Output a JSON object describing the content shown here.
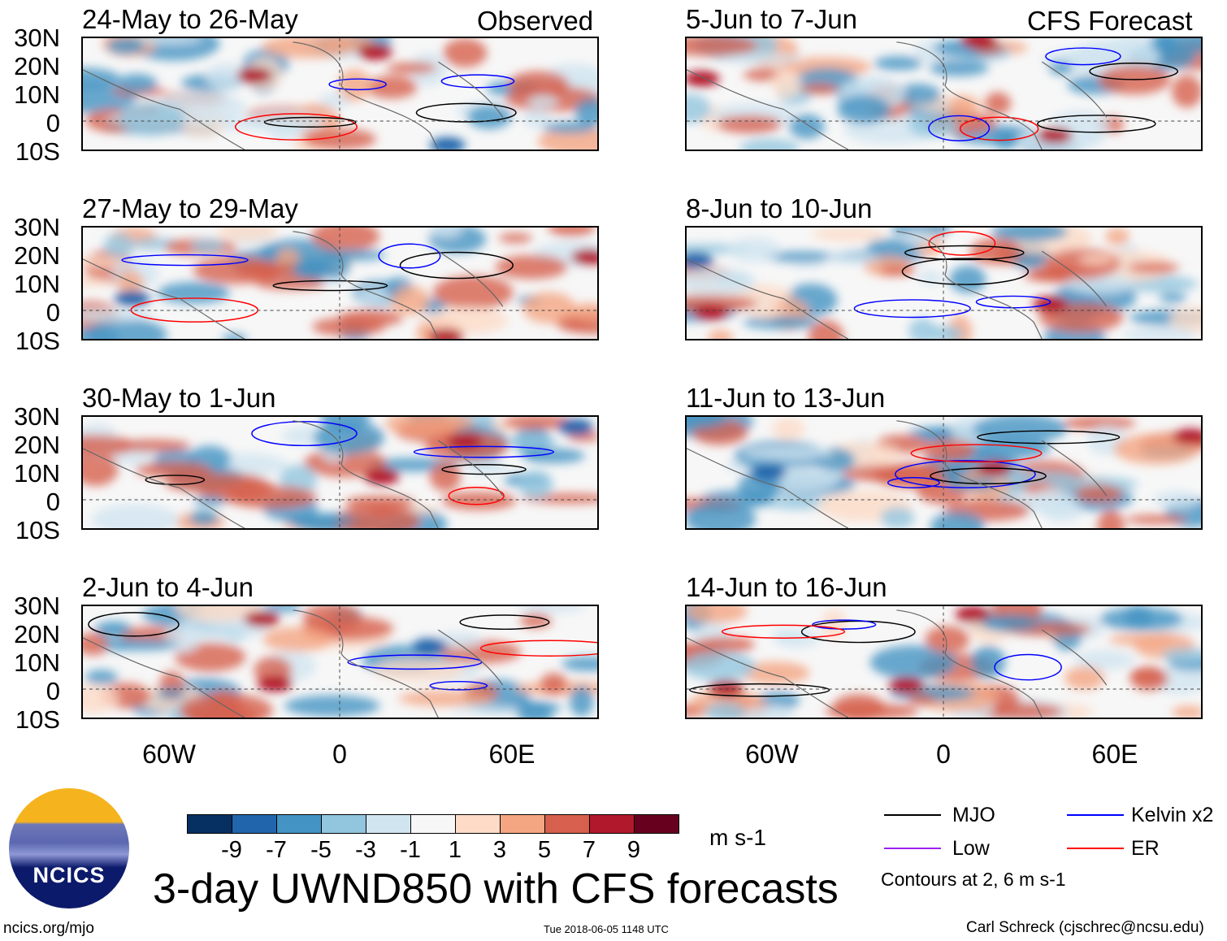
{
  "headers": {
    "observed": "Observed",
    "forecast": "CFS Forecast"
  },
  "panels": {
    "observed": [
      "24-May to 26-May",
      "27-May to 29-May",
      "30-May to 1-Jun",
      "2-Jun to 4-Jun"
    ],
    "forecast": [
      "5-Jun to 7-Jun",
      "8-Jun to 10-Jun",
      "11-Jun to 13-Jun",
      "14-Jun to 16-Jun"
    ]
  },
  "lat_labels": [
    "30N",
    "20N",
    "10N",
    "0",
    "10S"
  ],
  "lon_labels": [
    "60W",
    "0",
    "60E"
  ],
  "colorbar": {
    "colors": [
      "#053061",
      "#2166ac",
      "#4393c3",
      "#92c5de",
      "#d1e5f0",
      "#f7f7f7",
      "#fddbc7",
      "#f4a582",
      "#d6604d",
      "#b2182b",
      "#67001f"
    ],
    "labels": [
      "-9",
      "-7",
      "-5",
      "-3",
      "-1",
      "1",
      "3",
      "5",
      "7",
      "9"
    ],
    "units": "m s-1"
  },
  "legend": {
    "items": [
      {
        "label": "MJO",
        "color": "#000000"
      },
      {
        "label": "Kelvin x2",
        "color": "#0000ff"
      },
      {
        "label": "Low",
        "color": "#a020f0"
      },
      {
        "label": "ER",
        "color": "#ff0000"
      }
    ],
    "note": "Contours at 2, 6 m s-1"
  },
  "title": "3-day UWND850 with CFS forecasts",
  "logo": {
    "text": "NCICS"
  },
  "url": "ncics.org/mjo",
  "timestamp": "Tue 2018-06-05 1148 UTC",
  "credit": "Carl Schreck (cjschrec@ncsu.edu)"
}
